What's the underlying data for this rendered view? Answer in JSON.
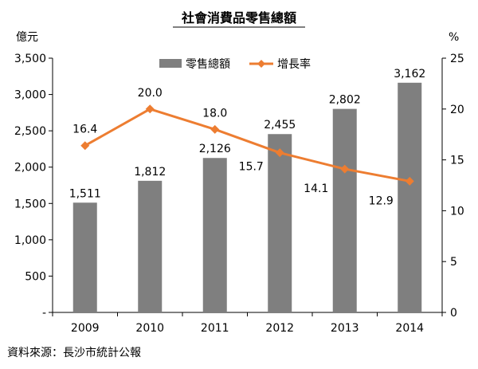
{
  "chart_data": {
    "type": "bar+line",
    "title": "社會消費品零售總額",
    "categories": [
      "2009",
      "2010",
      "2011",
      "2012",
      "2013",
      "2014"
    ],
    "series": [
      {
        "name": "零售總額",
        "type": "bar",
        "axis": "left",
        "values": [
          1511,
          1812,
          2126,
          2455,
          2802,
          3162
        ],
        "labels": [
          "1,511",
          "1,812",
          "2,126",
          "2,455",
          "2,802",
          "3,162"
        ],
        "color": "#7f7f7f"
      },
      {
        "name": "增長率",
        "type": "line",
        "axis": "right",
        "values": [
          16.4,
          20.0,
          18.0,
          15.7,
          14.1,
          12.9
        ],
        "labels": [
          "16.4",
          "20.0",
          "18.0",
          "15.7",
          "14.1",
          "12.9"
        ],
        "color": "#ed7d31"
      }
    ],
    "y_left": {
      "unit": "億元",
      "lim": [
        0,
        3500
      ],
      "ticks": [
        0,
        500,
        1000,
        1500,
        2000,
        2500,
        3000,
        3500
      ],
      "tick_labels": [
        "-",
        "500",
        "1,000",
        "1,500",
        "2,000",
        "2,500",
        "3,000",
        "3,500"
      ]
    },
    "y_right": {
      "unit": "%",
      "lim": [
        0,
        25
      ],
      "ticks": [
        0,
        5,
        10,
        15,
        20,
        25
      ],
      "tick_labels": [
        "0",
        "5",
        "10",
        "15",
        "20",
        "25"
      ]
    },
    "grid": false,
    "legend_position": "top-center",
    "source": "資料來源：長沙市統計公報"
  }
}
